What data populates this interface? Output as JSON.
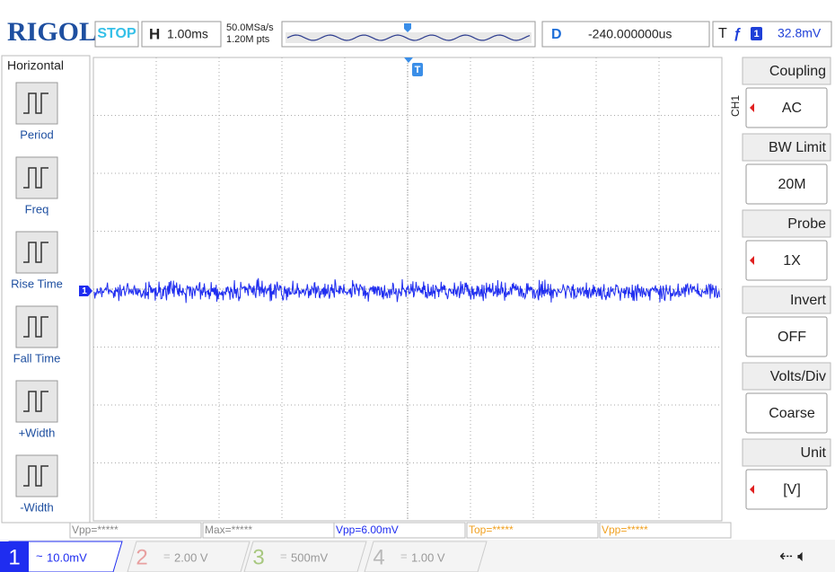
{
  "header": {
    "brand": "RIGOL",
    "status": "STOP",
    "timebase_label": "H",
    "timebase": "1.00ms",
    "sample_rate": "50.0MSa/s",
    "memory_depth": "1.20M pts",
    "delay_label": "D",
    "delay": "-240.000000us",
    "trigger_label": "T",
    "trigger_source": "1",
    "trigger_level": "32.8mV"
  },
  "left_menu": {
    "title": "Horizontal",
    "items": [
      "Period",
      "Freq",
      "Rise Time",
      "Fall Time",
      "+Width",
      "-Width"
    ]
  },
  "right_menu": {
    "channel": "CH1",
    "items": [
      {
        "label": "Coupling",
        "value": "AC"
      },
      {
        "label": "BW Limit",
        "value": "20M"
      },
      {
        "label": "Probe",
        "value": "1X"
      },
      {
        "label": "Invert",
        "value": "OFF"
      },
      {
        "label": "Volts/Div",
        "value": "Coarse"
      },
      {
        "label": "Unit",
        "value": "[V]"
      }
    ]
  },
  "graticule": {
    "channel_marker": "1",
    "trigger_marker": "T"
  },
  "measurements": [
    "Vpp=*****",
    "Max=*****",
    "Vpp=6.00mV",
    "Top=*****",
    "Vpp=*****"
  ],
  "channels": [
    {
      "number": "1",
      "coupling": "~",
      "scale": "10.0mV"
    },
    {
      "number": "2",
      "coupling": "=",
      "scale": "2.00 V"
    },
    {
      "number": "3",
      "coupling": "=",
      "scale": "500mV"
    },
    {
      "number": "4",
      "coupling": "=",
      "scale": "1.00 V"
    }
  ]
}
